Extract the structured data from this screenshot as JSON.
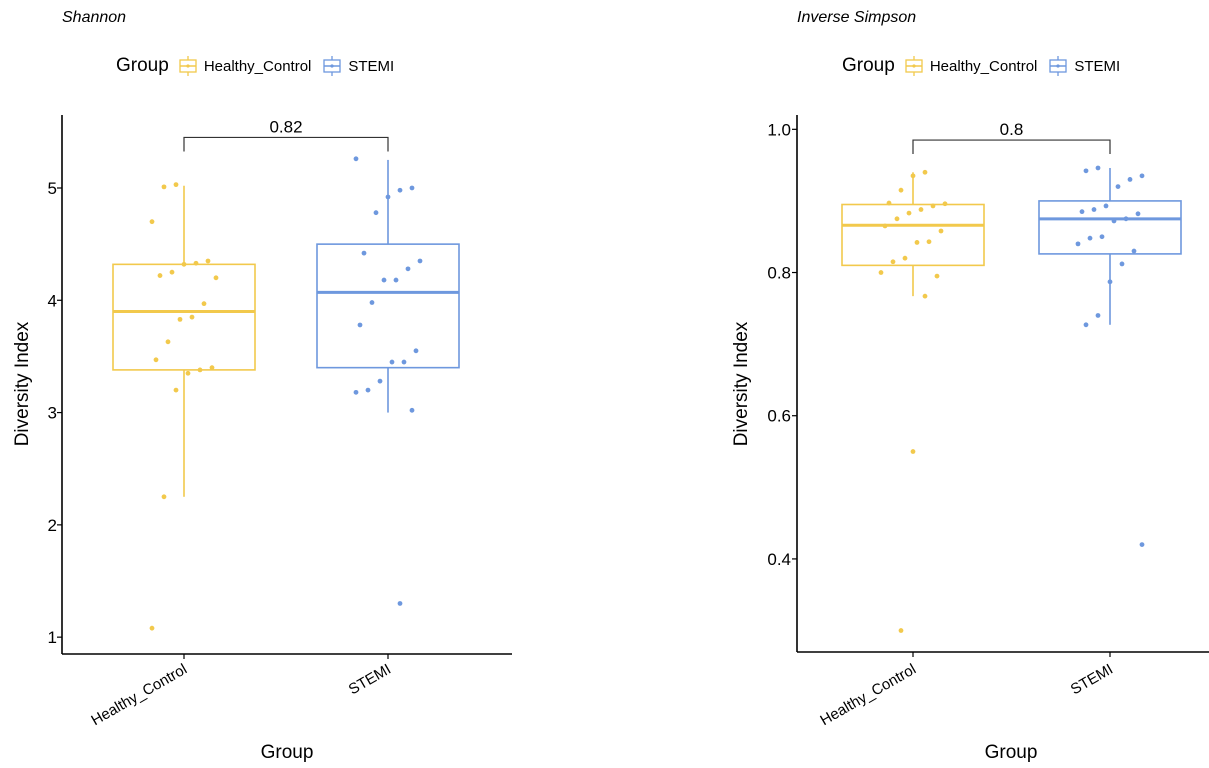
{
  "legend_title": "Group",
  "chart_data": [
    {
      "type": "box",
      "title": "Shannon",
      "xlabel": "Group",
      "ylabel": "Diversity Index",
      "ylim": [
        0.85,
        5.65
      ],
      "yticks": [
        "1",
        "2",
        "3",
        "4",
        "5"
      ],
      "ytick_values": [
        1,
        2,
        3,
        4,
        5
      ],
      "grid": false,
      "legend_position": "top",
      "categories": [
        "Healthy_Control",
        "STEMI"
      ],
      "colors": [
        "#F2C94C",
        "#6E98DE"
      ],
      "boxes": [
        {
          "name": "Healthy_Control",
          "whisker_low": 2.25,
          "q1": 3.38,
          "median": 3.9,
          "q3": 4.32,
          "whisker_high": 5.02
        },
        {
          "name": "STEMI",
          "whisker_low": 3.0,
          "q1": 3.4,
          "median": 4.07,
          "q3": 4.5,
          "whisker_high": 5.25
        }
      ],
      "points": [
        {
          "group": "Healthy_Control",
          "values": [
            1.08,
            2.25,
            3.2,
            3.35,
            3.38,
            3.4,
            3.47,
            3.63,
            3.83,
            3.85,
            3.97,
            4.2,
            4.22,
            4.25,
            4.32,
            4.33,
            4.35,
            4.7,
            5.01,
            5.03
          ]
        },
        {
          "group": "STEMI",
          "values": [
            1.3,
            3.02,
            3.18,
            3.2,
            3.28,
            3.45,
            3.45,
            3.55,
            3.78,
            3.98,
            4.18,
            4.18,
            4.28,
            4.35,
            4.42,
            4.78,
            4.92,
            4.98,
            5.0,
            5.26
          ]
        }
      ],
      "comparison": {
        "label": "0.82",
        "y": 5.45
      }
    },
    {
      "type": "box",
      "title": "Inverse Simpson",
      "xlabel": "Group",
      "ylabel": "Diversity Index",
      "ylim": [
        0.27,
        1.02
      ],
      "yticks": [
        "0.4",
        "0.6",
        "0.8",
        "1.0"
      ],
      "ytick_values": [
        0.4,
        0.6,
        0.8,
        1.0
      ],
      "grid": false,
      "legend_position": "top",
      "categories": [
        "Healthy_Control",
        "STEMI"
      ],
      "colors": [
        "#F2C94C",
        "#6E98DE"
      ],
      "boxes": [
        {
          "name": "Healthy_Control",
          "whisker_low": 0.767,
          "q1": 0.81,
          "median": 0.866,
          "q3": 0.895,
          "whisker_high": 0.94
        },
        {
          "name": "STEMI",
          "whisker_low": 0.727,
          "q1": 0.826,
          "median": 0.875,
          "q3": 0.9,
          "whisker_high": 0.946
        }
      ],
      "points": [
        {
          "group": "Healthy_Control",
          "values": [
            0.3,
            0.55,
            0.767,
            0.795,
            0.8,
            0.815,
            0.82,
            0.842,
            0.843,
            0.858,
            0.865,
            0.875,
            0.883,
            0.888,
            0.893,
            0.896,
            0.897,
            0.915,
            0.935,
            0.94
          ]
        },
        {
          "group": "STEMI",
          "values": [
            0.42,
            0.727,
            0.74,
            0.787,
            0.812,
            0.83,
            0.84,
            0.848,
            0.85,
            0.872,
            0.875,
            0.882,
            0.885,
            0.888,
            0.893,
            0.92,
            0.93,
            0.935,
            0.942,
            0.946
          ]
        }
      ],
      "comparison": {
        "label": "0.8",
        "y": 0.985
      }
    }
  ]
}
